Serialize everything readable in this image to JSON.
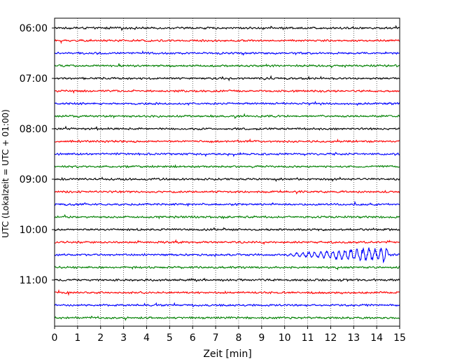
{
  "chart_data": {
    "type": "line",
    "title": "",
    "xlabel": "Zeit  [min]",
    "ylabel": "UTC (Lokalzeit = UTC + 01:00)",
    "xlim": [
      0,
      15
    ],
    "x_ticks": [
      0,
      1,
      2,
      3,
      4,
      5,
      6,
      7,
      8,
      9,
      10,
      11,
      12,
      13,
      14,
      15
    ],
    "x_tick_labels": [
      "0",
      "1",
      "2",
      "3",
      "4",
      "5",
      "6",
      "7",
      "8",
      "9",
      "10",
      "11",
      "12",
      "13",
      "14",
      "15"
    ],
    "y_tick_labels": [
      "06:00",
      "07:00",
      "08:00",
      "09:00",
      "10:00",
      "11:00"
    ],
    "grid": "vertical dotted at each minute",
    "trace_minutes": 15,
    "color_cycle": [
      "#000000",
      "#ff0000",
      "#0000ff",
      "#008000"
    ],
    "series": [
      {
        "start": "06:00",
        "color": "#000000",
        "amplitude": 0.25
      },
      {
        "start": "06:15",
        "color": "#ff0000",
        "amplitude": 0.25
      },
      {
        "start": "06:30",
        "color": "#0000ff",
        "amplitude": 0.25
      },
      {
        "start": "06:45",
        "color": "#008000",
        "amplitude": 0.25
      },
      {
        "start": "07:00",
        "color": "#000000",
        "amplitude": 0.25
      },
      {
        "start": "07:15",
        "color": "#ff0000",
        "amplitude": 0.25
      },
      {
        "start": "07:30",
        "color": "#0000ff",
        "amplitude": 0.25
      },
      {
        "start": "07:45",
        "color": "#008000",
        "amplitude": 0.25
      },
      {
        "start": "08:00",
        "color": "#000000",
        "amplitude": 0.25
      },
      {
        "start": "08:15",
        "color": "#ff0000",
        "amplitude": 0.25
      },
      {
        "start": "08:30",
        "color": "#0000ff",
        "amplitude": 0.25
      },
      {
        "start": "08:45",
        "color": "#008000",
        "amplitude": 0.25
      },
      {
        "start": "09:00",
        "color": "#000000",
        "amplitude": 0.25
      },
      {
        "start": "09:15",
        "color": "#ff0000",
        "amplitude": 0.25
      },
      {
        "start": "09:30",
        "color": "#0000ff",
        "amplitude": 0.25
      },
      {
        "start": "09:45",
        "color": "#008000",
        "amplitude": 0.25
      },
      {
        "start": "10:00",
        "color": "#000000",
        "amplitude": 0.25
      },
      {
        "start": "10:15",
        "color": "#ff0000",
        "amplitude": 0.25
      },
      {
        "start": "10:30",
        "color": "#0000ff",
        "amplitude": 0.25,
        "event": {
          "from_min": 10,
          "to_min": 14.5,
          "peak_amplitude": 0.5
        }
      },
      {
        "start": "10:45",
        "color": "#008000",
        "amplitude": 0.25
      },
      {
        "start": "11:00",
        "color": "#000000",
        "amplitude": 0.25
      },
      {
        "start": "11:15",
        "color": "#ff0000",
        "amplitude": 0.25
      },
      {
        "start": "11:30",
        "color": "#0000ff",
        "amplitude": 0.25
      },
      {
        "start": "11:45",
        "color": "#008000",
        "amplitude": 0.25
      }
    ]
  }
}
